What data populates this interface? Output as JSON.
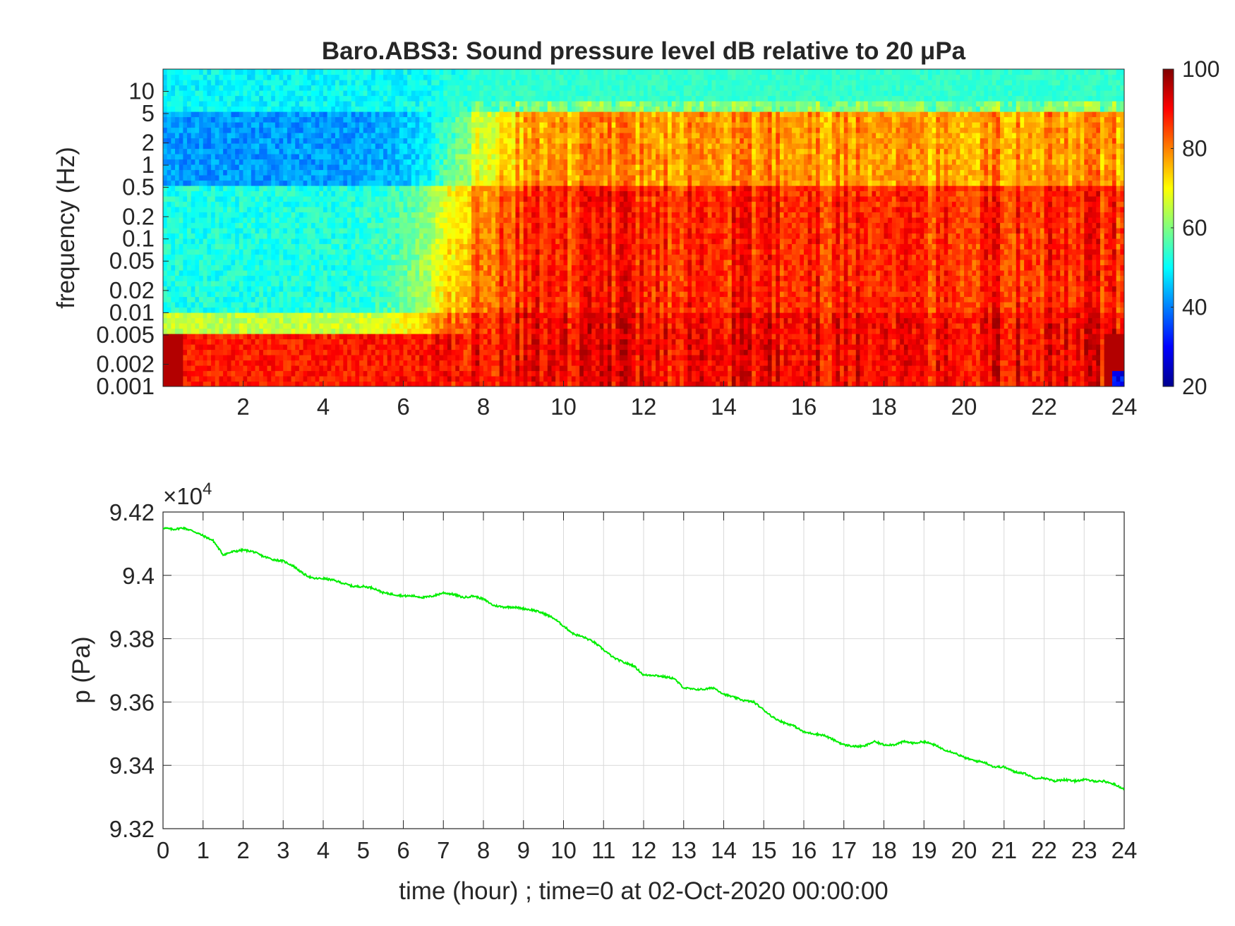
{
  "chart_data": [
    {
      "type": "heatmap",
      "title": "Baro.ABS3: Sound pressure level dB relative to 20 μPa",
      "xlabel": "",
      "ylabel": "frequency (Hz)",
      "x_units": "hour",
      "xlim": [
        0,
        24
      ],
      "ylim": [
        0.001,
        20
      ],
      "yscale": "log",
      "x_ticks": [
        2,
        4,
        6,
        8,
        10,
        12,
        14,
        16,
        18,
        20,
        22,
        24
      ],
      "x_tick_labels": [
        "2",
        "4",
        "6",
        "8",
        "10",
        "12",
        "14",
        "16",
        "18",
        "20",
        "22",
        "24"
      ],
      "y_ticks": [
        0.001,
        0.002,
        0.005,
        0.01,
        0.02,
        0.05,
        0.1,
        0.2,
        0.5,
        1,
        2,
        5,
        10
      ],
      "y_tick_labels": [
        "0.001",
        "0.002",
        "0.005",
        "0.01",
        "0.02",
        "0.05",
        "0.1",
        "0.2",
        "0.5",
        "1",
        "2",
        "5",
        "10"
      ],
      "colormap": "jet",
      "colorbar": {
        "range": [
          20,
          100
        ],
        "ticks": [
          20,
          40,
          60,
          80,
          100
        ],
        "tick_labels": [
          "20",
          "40",
          "60",
          "80",
          "100"
        ]
      },
      "approx_levels_db": {
        "hours_0_to_7": {
          "above_5Hz": 50,
          "0.5_to_5Hz": 42,
          "0.01_to_0.5Hz": 52,
          "0.005_to_0.01Hz": 65,
          "below_0.005Hz": 88
        },
        "hours_8_to_24": {
          "above_5Hz": 60,
          "0.5_to_5Hz": 78,
          "0.01_to_0.5Hz": 87,
          "below_0.01Hz": 90
        }
      }
    },
    {
      "type": "line",
      "xlabel": "time (hour) ; time=0 at 02-Oct-2020 00:00:00",
      "ylabel": "p (Pa)",
      "y_multiplier_label": "×10",
      "y_multiplier_exponent": "4",
      "xlim": [
        0,
        24
      ],
      "ylim": [
        93200,
        94200
      ],
      "grid": true,
      "x_ticks": [
        0,
        1,
        2,
        3,
        4,
        5,
        6,
        7,
        8,
        9,
        10,
        11,
        12,
        13,
        14,
        15,
        16,
        17,
        18,
        19,
        20,
        21,
        22,
        23,
        24
      ],
      "x_tick_labels": [
        "0",
        "1",
        "2",
        "3",
        "4",
        "5",
        "6",
        "7",
        "8",
        "9",
        "10",
        "11",
        "12",
        "13",
        "14",
        "15",
        "16",
        "17",
        "18",
        "19",
        "20",
        "21",
        "22",
        "23",
        "24"
      ],
      "y_ticks": [
        93200,
        93400,
        93600,
        93800,
        94000,
        94200
      ],
      "y_tick_labels": [
        "9.32",
        "9.34",
        "9.36",
        "9.38",
        "9.4",
        "9.42"
      ],
      "series": [
        {
          "color": "#00ee00",
          "x": [
            0,
            0.25,
            0.5,
            0.75,
            1,
            1.25,
            1.5,
            1.75,
            2,
            2.25,
            2.5,
            2.75,
            3,
            3.25,
            3.5,
            3.75,
            4,
            4.25,
            4.5,
            4.75,
            5,
            5.25,
            5.5,
            5.75,
            6,
            6.25,
            6.5,
            6.75,
            7,
            7.25,
            7.5,
            7.75,
            8,
            8.25,
            8.5,
            8.75,
            9,
            9.25,
            9.5,
            9.75,
            10,
            10.25,
            10.5,
            10.75,
            11,
            11.25,
            11.5,
            11.75,
            12,
            12.25,
            12.5,
            12.75,
            13,
            13.25,
            13.5,
            13.75,
            14,
            14.25,
            14.5,
            14.75,
            15,
            15.25,
            15.5,
            15.75,
            16,
            16.25,
            16.5,
            16.75,
            17,
            17.25,
            17.5,
            17.75,
            18,
            18.25,
            18.5,
            18.75,
            19,
            19.25,
            19.5,
            19.75,
            20,
            20.25,
            20.5,
            20.75,
            21,
            21.25,
            21.5,
            21.75,
            22,
            22.25,
            22.5,
            22.75,
            23,
            23.25,
            23.5,
            23.75,
            24
          ],
          "y": [
            94150,
            94145,
            94150,
            94140,
            94125,
            94110,
            94065,
            94075,
            94080,
            94075,
            94060,
            94050,
            94045,
            94030,
            94005,
            93990,
            93990,
            93985,
            93975,
            93965,
            93965,
            93960,
            93945,
            93940,
            93935,
            93935,
            93930,
            93935,
            93945,
            93940,
            93930,
            93935,
            93925,
            93905,
            93900,
            93900,
            93895,
            93890,
            93880,
            93865,
            93840,
            93815,
            93805,
            93790,
            93765,
            93740,
            93725,
            93715,
            93685,
            93685,
            93680,
            93675,
            93645,
            93640,
            93640,
            93645,
            93625,
            93615,
            93605,
            93600,
            93575,
            93550,
            93535,
            93525,
            93505,
            93500,
            93495,
            93480,
            93465,
            93460,
            93460,
            93475,
            93465,
            93465,
            93475,
            93470,
            93475,
            93465,
            93450,
            93440,
            93425,
            93415,
            93410,
            93395,
            93395,
            93380,
            93375,
            93360,
            93360,
            93350,
            93355,
            93350,
            93355,
            93350,
            93350,
            93340,
            93325
          ]
        }
      ]
    }
  ]
}
